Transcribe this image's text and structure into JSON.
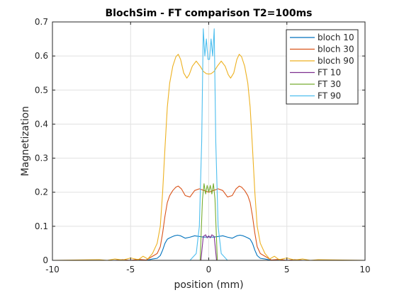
{
  "chart_data": {
    "type": "line",
    "title": "BlochSim - FT comparison T2=100ms",
    "xlabel": "position (mm)",
    "ylabel": "Magnetization",
    "xlim": [
      -10,
      10
    ],
    "ylim": [
      0,
      0.7
    ],
    "xticks": [
      -10,
      -5,
      0,
      5,
      10
    ],
    "xtick_labels": [
      "-10",
      "-5",
      "0",
      "5",
      "10"
    ],
    "yticks": [
      0,
      0.1,
      0.2,
      0.3,
      0.4,
      0.5,
      0.6,
      0.7
    ],
    "ytick_labels": [
      "0",
      "0.1",
      "0.2",
      "0.3",
      "0.4",
      "0.5",
      "0.6",
      "0.7"
    ],
    "grid": true,
    "legend_position": "top-right",
    "series": [
      {
        "name": "bloch 10",
        "color": "#0072bd",
        "x": [
          -10,
          -6,
          -5.5,
          -5,
          -4.5,
          -4,
          -3.6,
          -3.3,
          -3.1,
          -2.95,
          -2.8,
          -2.65,
          -2.5,
          -2.35,
          -2.2,
          -2.0,
          -1.8,
          -1.5,
          -1.2,
          -0.9,
          -0.6,
          -0.3,
          0,
          0.3,
          0.6,
          0.9,
          1.2,
          1.5,
          1.8,
          2.0,
          2.2,
          2.35,
          2.5,
          2.65,
          2.8,
          2.95,
          3.1,
          3.3,
          3.6,
          4,
          4.5,
          5,
          5.5,
          6,
          10
        ],
        "y": [
          0.0,
          0.0,
          0.0005,
          0.0,
          0.001,
          0.0,
          0.004,
          0.006,
          0.014,
          0.03,
          0.05,
          0.062,
          0.066,
          0.069,
          0.072,
          0.074,
          0.072,
          0.065,
          0.068,
          0.072,
          0.07,
          0.068,
          0.069,
          0.068,
          0.07,
          0.072,
          0.068,
          0.065,
          0.072,
          0.074,
          0.072,
          0.069,
          0.066,
          0.062,
          0.05,
          0.03,
          0.014,
          0.006,
          0.004,
          0.0,
          0.001,
          0.0,
          0.0005,
          0.0,
          0.0
        ]
      },
      {
        "name": "bloch 30",
        "color": "#d95319",
        "x": [
          -10,
          -6,
          -5.5,
          -5,
          -4.5,
          -4,
          -3.6,
          -3.3,
          -3.1,
          -2.95,
          -2.8,
          -2.65,
          -2.5,
          -2.3,
          -2.1,
          -1.95,
          -1.75,
          -1.5,
          -1.2,
          -0.9,
          -0.6,
          -0.3,
          0,
          0.3,
          0.6,
          0.9,
          1.2,
          1.5,
          1.75,
          1.95,
          2.1,
          2.3,
          2.5,
          2.65,
          2.8,
          2.95,
          3.1,
          3.3,
          3.6,
          4,
          4.5,
          5,
          5.5,
          6,
          10
        ],
        "y": [
          0.0,
          0.0,
          0.002,
          0.0,
          0.003,
          0.001,
          0.012,
          0.02,
          0.04,
          0.08,
          0.13,
          0.17,
          0.19,
          0.205,
          0.215,
          0.218,
          0.21,
          0.19,
          0.186,
          0.205,
          0.21,
          0.205,
          0.2,
          0.205,
          0.21,
          0.205,
          0.186,
          0.19,
          0.21,
          0.218,
          0.215,
          0.205,
          0.19,
          0.17,
          0.13,
          0.08,
          0.04,
          0.02,
          0.012,
          0.001,
          0.003,
          0.0,
          0.002,
          0.0,
          0.0
        ]
      },
      {
        "name": "bloch 90",
        "color": "#edb120",
        "x": [
          -10,
          -7,
          -6.5,
          -6,
          -5.5,
          -5,
          -4.5,
          -4.2,
          -3.9,
          -3.6,
          -3.3,
          -3.1,
          -2.95,
          -2.8,
          -2.65,
          -2.5,
          -2.3,
          -2.1,
          -1.95,
          -1.8,
          -1.6,
          -1.4,
          -1.25,
          -1.05,
          -0.8,
          -0.55,
          -0.35,
          -0.15,
          0,
          0.15,
          0.35,
          0.55,
          0.8,
          1.05,
          1.25,
          1.4,
          1.6,
          1.8,
          1.95,
          2.1,
          2.3,
          2.5,
          2.65,
          2.8,
          2.95,
          3.1,
          3.3,
          3.6,
          3.9,
          4.2,
          4.5,
          5,
          5.5,
          6,
          6.5,
          7,
          10
        ],
        "y": [
          0.0,
          0.002,
          0.0,
          0.004,
          0.001,
          0.007,
          0.002,
          0.012,
          0.004,
          0.02,
          0.05,
          0.1,
          0.2,
          0.33,
          0.45,
          0.52,
          0.57,
          0.598,
          0.605,
          0.59,
          0.55,
          0.535,
          0.545,
          0.57,
          0.585,
          0.57,
          0.555,
          0.548,
          0.547,
          0.548,
          0.555,
          0.57,
          0.585,
          0.57,
          0.545,
          0.535,
          0.55,
          0.59,
          0.605,
          0.598,
          0.57,
          0.52,
          0.45,
          0.33,
          0.2,
          0.1,
          0.05,
          0.02,
          0.004,
          0.012,
          0.002,
          0.007,
          0.001,
          0.004,
          0.0,
          0.002,
          0.0
        ]
      },
      {
        "name": "FT 10",
        "color": "#7e2f8e",
        "x": [
          -10,
          -0.5,
          -0.35,
          -0.2,
          -0.1,
          0,
          0.1,
          0.2,
          0.35,
          0.5,
          10
        ],
        "y": [
          0.0,
          0.0,
          0.07,
          0.075,
          0.066,
          0.072,
          0.066,
          0.075,
          0.07,
          0.0,
          0.0
        ]
      },
      {
        "name": "FT 30",
        "color": "#77ac30",
        "x": [
          -10,
          -0.55,
          -0.4,
          -0.3,
          -0.2,
          -0.1,
          0,
          0.1,
          0.2,
          0.3,
          0.4,
          0.55,
          10
        ],
        "y": [
          0.0,
          0.0,
          0.18,
          0.225,
          0.195,
          0.22,
          0.2,
          0.22,
          0.195,
          0.225,
          0.18,
          0.0,
          0.0
        ]
      },
      {
        "name": "FT 90",
        "color": "#4dbeee",
        "x": [
          -10,
          -1.2,
          -0.8,
          -0.6,
          -0.45,
          -0.35,
          -0.25,
          -0.15,
          -0.05,
          0.05,
          0.15,
          0.25,
          0.35,
          0.45,
          0.6,
          0.8,
          1.2,
          10
        ],
        "y": [
          0.0,
          0.0,
          0.02,
          0.1,
          0.35,
          0.68,
          0.6,
          0.65,
          0.59,
          0.59,
          0.65,
          0.6,
          0.68,
          0.35,
          0.1,
          0.02,
          0.0,
          0.0
        ]
      }
    ]
  }
}
